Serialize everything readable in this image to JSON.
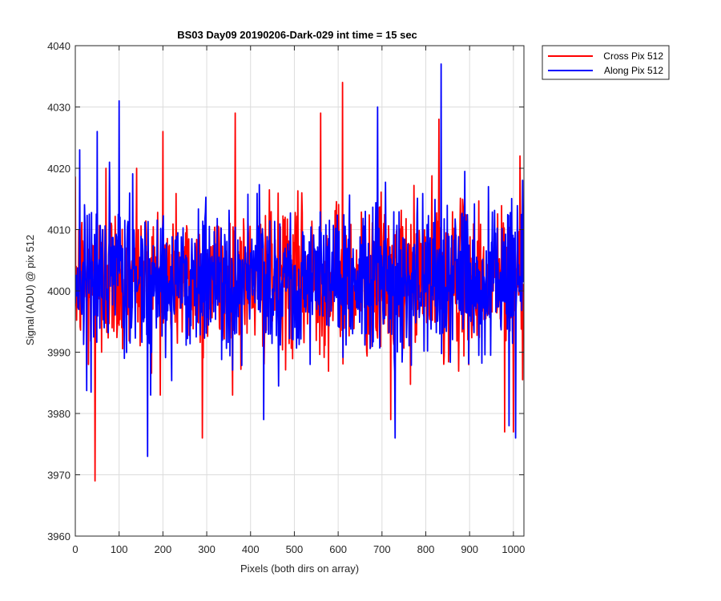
{
  "chart_data": {
    "type": "line",
    "title": "BS03 Day09 20190206-Dark-029 int time = 15 sec",
    "xlabel": "Pixels (both dirs on array)",
    "ylabel": "Signal (ADU) @ pix 512",
    "xlim": [
      0,
      1024
    ],
    "ylim": [
      3960,
      4040
    ],
    "xticks": [
      0,
      100,
      200,
      300,
      400,
      500,
      600,
      700,
      800,
      900,
      1000
    ],
    "yticks": [
      3960,
      3970,
      3980,
      3990,
      4000,
      4010,
      4020,
      4030,
      4040
    ],
    "grid": true,
    "legend_position": "outside-top-right",
    "series": [
      {
        "name": "Cross Pix 512",
        "color": "#ff0000",
        "n_points": 1024,
        "mean": 4002,
        "noise_sd": 6,
        "notable_points": [
          [
            30,
            3988
          ],
          [
            45,
            3969
          ],
          [
            60,
            3990
          ],
          [
            70,
            4020
          ],
          [
            140,
            4020
          ],
          [
            200,
            4026
          ],
          [
            290,
            3976
          ],
          [
            365,
            4029
          ],
          [
            560,
            4029
          ],
          [
            610,
            4034
          ],
          [
            720,
            3979
          ],
          [
            830,
            4028
          ],
          [
            980,
            3977
          ],
          [
            1000,
            3977
          ],
          [
            1015,
            4022
          ]
        ]
      },
      {
        "name": "Along Pix 512",
        "color": "#0000ff",
        "n_points": 1024,
        "mean": 4002,
        "noise_sd": 6,
        "notable_points": [
          [
            10,
            4023
          ],
          [
            50,
            4026
          ],
          [
            100,
            4031
          ],
          [
            165,
            3973
          ],
          [
            430,
            3979
          ],
          [
            690,
            4030
          ],
          [
            730,
            3976
          ],
          [
            835,
            4037
          ],
          [
            990,
            3978
          ],
          [
            1005,
            3976
          ]
        ]
      }
    ]
  }
}
